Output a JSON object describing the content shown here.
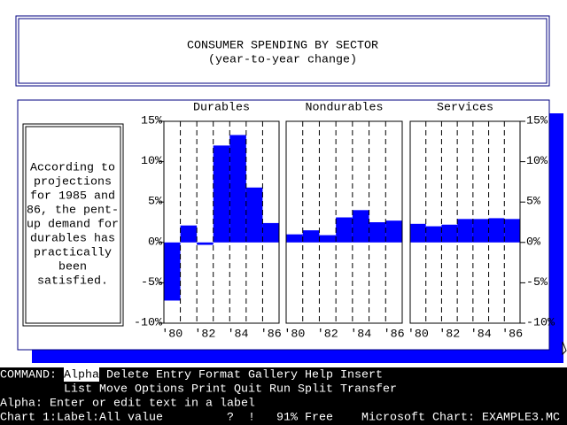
{
  "title_box": {
    "title": "CONSUMER SPENDING BY SECTOR",
    "subtitle": "(year-to-year change)"
  },
  "note": {
    "lines": [
      "According to",
      "projections",
      "for 1985 and",
      "86, the pent-",
      "up demand for",
      "durables has",
      "practically",
      "been",
      "satisfied."
    ]
  },
  "chart_data": [
    {
      "type": "bar",
      "title": "Durables",
      "categories": [
        "'80",
        null,
        "'82",
        null,
        "'84",
        null,
        "'86"
      ],
      "values": [
        -7.2,
        2.1,
        -0.3,
        12,
        13.3,
        6.8,
        2.4
      ],
      "color": "#0000ff",
      "ylim": [
        -10,
        15
      ],
      "yticks": [
        {
          "value": 15,
          "label": "15%"
        },
        {
          "value": 10,
          "label": "10%"
        },
        {
          "value": 5,
          "label": "5%"
        },
        {
          "value": 0,
          "label": "0%"
        },
        {
          "value": -5,
          "label": "-5%"
        },
        {
          "value": -10,
          "label": "-10%"
        }
      ]
    },
    {
      "type": "bar",
      "title": "Nondurables",
      "categories": [
        "'80",
        null,
        "'82",
        null,
        "'84",
        null,
        "'86"
      ],
      "values": [
        1,
        1.5,
        0.9,
        3.1,
        4,
        2.5,
        2.7
      ],
      "color": "#0000ff",
      "ylim": [
        -10,
        15
      ],
      "yticks": [
        {
          "value": 15,
          "label": "15%"
        },
        {
          "value": 10,
          "label": "10%"
        },
        {
          "value": 5,
          "label": "5%"
        },
        {
          "value": 0,
          "label": "0%"
        },
        {
          "value": -5,
          "label": "-5%"
        },
        {
          "value": -10,
          "label": "-10%"
        }
      ]
    },
    {
      "type": "bar",
      "title": "Services",
      "categories": [
        "'80",
        null,
        "'82",
        null,
        "'84",
        null,
        "'86"
      ],
      "values": [
        2.3,
        2,
        2.2,
        2.9,
        2.9,
        3,
        2.9
      ],
      "color": "#0000ff",
      "ylim": [
        -10,
        15
      ],
      "yticks": [
        {
          "value": 15,
          "label": "15%"
        },
        {
          "value": 10,
          "label": "10%"
        },
        {
          "value": 5,
          "label": "5%"
        },
        {
          "value": 0,
          "label": "0%"
        },
        {
          "value": -5,
          "label": "-5%"
        },
        {
          "value": -10,
          "label": "-10%"
        }
      ]
    }
  ],
  "command_menu": {
    "label": "COMMAND:",
    "items": [
      "Alpha",
      "Delete",
      "Entry",
      "Format",
      "Gallery",
      "Help",
      "Insert",
      "List",
      "Move",
      "Options",
      "Print",
      "Quit",
      "Run",
      "Split",
      "Transfer"
    ]
  },
  "message": "Alpha: Enter or edit text in a label",
  "status": {
    "label": "Chart 1:Label:All value",
    "query": "?",
    "alert": "!",
    "memory": "91% Free",
    "program": "Microsoft Chart: EXAMPLE3.MC"
  }
}
